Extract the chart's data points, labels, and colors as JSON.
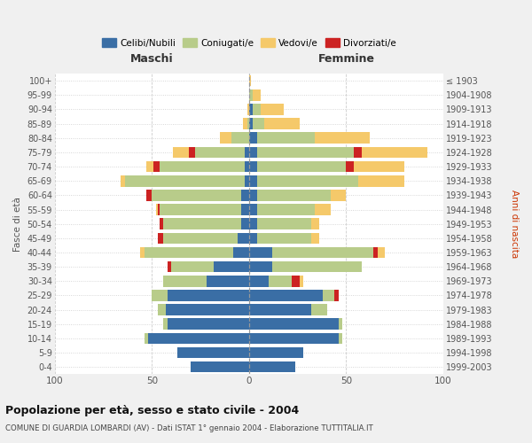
{
  "age_groups": [
    "0-4",
    "5-9",
    "10-14",
    "15-19",
    "20-24",
    "25-29",
    "30-34",
    "35-39",
    "40-44",
    "45-49",
    "50-54",
    "55-59",
    "60-64",
    "65-69",
    "70-74",
    "75-79",
    "80-84",
    "85-89",
    "90-94",
    "95-99",
    "100+"
  ],
  "birth_years": [
    "1999-2003",
    "1994-1998",
    "1989-1993",
    "1984-1988",
    "1979-1983",
    "1974-1978",
    "1969-1973",
    "1964-1968",
    "1959-1963",
    "1954-1958",
    "1949-1953",
    "1944-1948",
    "1939-1943",
    "1934-1938",
    "1929-1933",
    "1924-1928",
    "1919-1923",
    "1914-1918",
    "1909-1913",
    "1904-1908",
    "≤ 1903"
  ],
  "colors": {
    "celibi": "#3a6ea5",
    "coniugati": "#b8cc8a",
    "vedovi": "#f5c96a",
    "divorziati": "#cc2222"
  },
  "maschi": {
    "celibi": [
      30,
      37,
      52,
      42,
      43,
      42,
      22,
      18,
      8,
      6,
      4,
      4,
      4,
      2,
      2,
      2,
      0,
      0,
      0,
      0,
      0
    ],
    "coniugati": [
      0,
      0,
      2,
      2,
      4,
      8,
      22,
      22,
      46,
      38,
      40,
      42,
      46,
      62,
      44,
      26,
      9,
      1,
      0,
      0,
      0
    ],
    "vedovi": [
      0,
      0,
      0,
      0,
      0,
      0,
      0,
      0,
      2,
      0,
      0,
      1,
      0,
      2,
      4,
      8,
      6,
      2,
      1,
      0,
      0
    ],
    "divorziati": [
      0,
      0,
      0,
      0,
      0,
      0,
      0,
      2,
      0,
      3,
      2,
      1,
      3,
      0,
      3,
      3,
      0,
      0,
      0,
      0,
      0
    ]
  },
  "femmine": {
    "celibi": [
      24,
      28,
      46,
      46,
      32,
      38,
      10,
      12,
      12,
      4,
      4,
      4,
      4,
      4,
      4,
      4,
      4,
      2,
      2,
      0,
      0
    ],
    "coniugati": [
      0,
      0,
      2,
      2,
      8,
      6,
      12,
      46,
      52,
      28,
      28,
      30,
      38,
      52,
      46,
      50,
      30,
      6,
      4,
      2,
      0
    ],
    "vedovi": [
      0,
      0,
      0,
      0,
      0,
      0,
      2,
      0,
      4,
      4,
      4,
      8,
      8,
      24,
      26,
      34,
      28,
      18,
      12,
      4,
      1
    ],
    "divorziati": [
      0,
      0,
      0,
      0,
      0,
      2,
      4,
      0,
      2,
      0,
      0,
      0,
      0,
      0,
      4,
      4,
      0,
      0,
      0,
      0,
      0
    ]
  },
  "title": "Popolazione per età, sesso e stato civile - 2004",
  "subtitle": "COMUNE DI GUARDIA LOMBARDI (AV) - Dati ISTAT 1° gennaio 2004 - Elaborazione TUTTITALIA.IT",
  "xlabel_left": "Maschi",
  "xlabel_right": "Femmine",
  "ylabel_left": "Fasce di età",
  "ylabel_right": "Anni di nascita",
  "legend_labels": [
    "Celibi/Nubili",
    "Coniugati/e",
    "Vedovi/e",
    "Divorziati/e"
  ],
  "xlim": 100,
  "bg_color": "#f0f0f0",
  "plot_bg": "#ffffff"
}
